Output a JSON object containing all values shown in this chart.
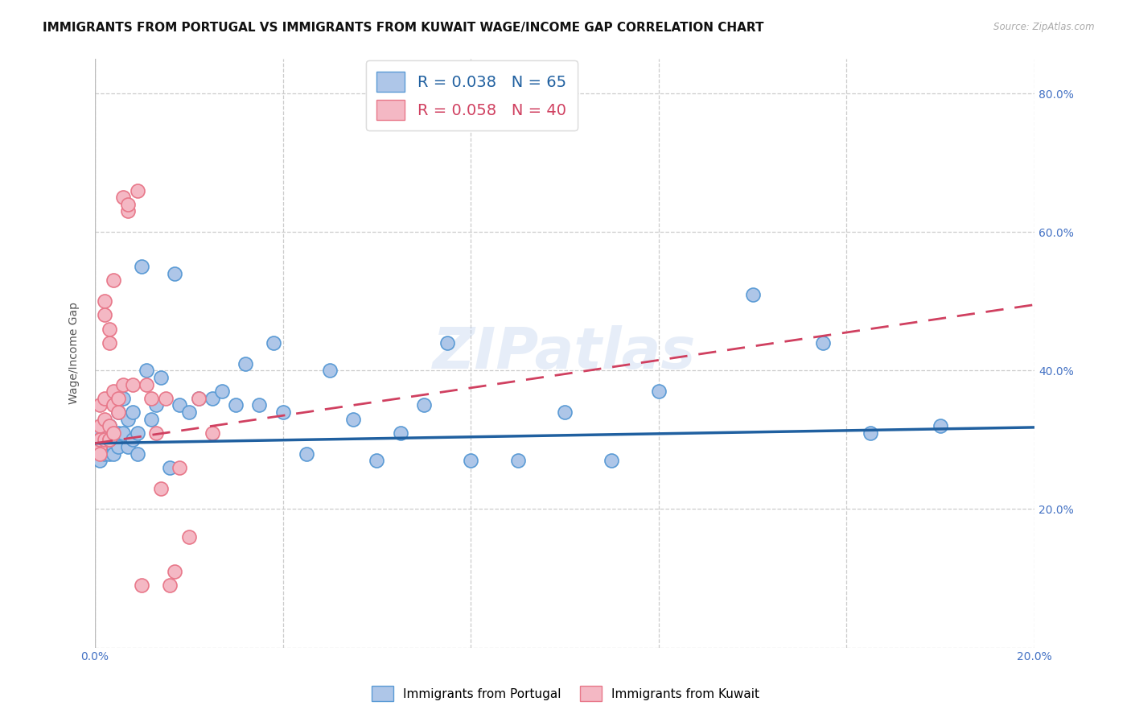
{
  "title": "IMMIGRANTS FROM PORTUGAL VS IMMIGRANTS FROM KUWAIT WAGE/INCOME GAP CORRELATION CHART",
  "source": "Source: ZipAtlas.com",
  "ylabel": "Wage/Income Gap",
  "xlim": [
    0.0,
    0.2
  ],
  "ylim": [
    0.0,
    0.85
  ],
  "xticks": [
    0.0,
    0.04,
    0.08,
    0.12,
    0.16,
    0.2
  ],
  "xticklabels": [
    "0.0%",
    "",
    "",
    "",
    "",
    "20.0%"
  ],
  "yticks": [
    0.0,
    0.2,
    0.4,
    0.6,
    0.8
  ],
  "yticklabels": [
    "",
    "20.0%",
    "40.0%",
    "60.0%",
    "80.0%"
  ],
  "portugal_color": "#aec6e8",
  "portugal_edge": "#5b9bd5",
  "kuwait_color": "#f4b8c4",
  "kuwait_edge": "#e8788a",
  "portugal_line_color": "#2060a0",
  "kuwait_line_color": "#d04060",
  "legend_portugal_label": "R = 0.038   N = 65",
  "legend_kuwait_label": "R = 0.058   N = 40",
  "watermark": "ZIPatlas",
  "background_color": "#ffffff",
  "grid_color": "#cccccc",
  "title_fontsize": 11,
  "axis_fontsize": 10,
  "tick_fontsize": 10,
  "tick_color": "#4472c4",
  "portugal_line_y0": 0.295,
  "portugal_line_y1": 0.318,
  "kuwait_line_y0": 0.295,
  "kuwait_line_y1": 0.495,
  "portugal_x": [
    0.001,
    0.001,
    0.001,
    0.001,
    0.001,
    0.002,
    0.002,
    0.002,
    0.002,
    0.002,
    0.002,
    0.003,
    0.003,
    0.003,
    0.003,
    0.003,
    0.003,
    0.004,
    0.004,
    0.004,
    0.004,
    0.005,
    0.005,
    0.005,
    0.006,
    0.006,
    0.007,
    0.007,
    0.008,
    0.008,
    0.009,
    0.009,
    0.01,
    0.011,
    0.012,
    0.013,
    0.014,
    0.016,
    0.017,
    0.018,
    0.02,
    0.022,
    0.025,
    0.027,
    0.03,
    0.032,
    0.035,
    0.038,
    0.04,
    0.045,
    0.05,
    0.055,
    0.06,
    0.065,
    0.07,
    0.075,
    0.08,
    0.09,
    0.1,
    0.11,
    0.12,
    0.14,
    0.155,
    0.165,
    0.18
  ],
  "portugal_y": [
    0.29,
    0.31,
    0.3,
    0.28,
    0.27,
    0.3,
    0.29,
    0.31,
    0.28,
    0.32,
    0.3,
    0.3,
    0.31,
    0.29,
    0.32,
    0.28,
    0.31,
    0.3,
    0.31,
    0.29,
    0.28,
    0.34,
    0.31,
    0.29,
    0.36,
    0.31,
    0.33,
    0.29,
    0.34,
    0.3,
    0.31,
    0.28,
    0.55,
    0.4,
    0.33,
    0.35,
    0.39,
    0.26,
    0.54,
    0.35,
    0.34,
    0.36,
    0.36,
    0.37,
    0.35,
    0.41,
    0.35,
    0.44,
    0.34,
    0.28,
    0.4,
    0.33,
    0.27,
    0.31,
    0.35,
    0.44,
    0.27,
    0.27,
    0.34,
    0.27,
    0.37,
    0.51,
    0.44,
    0.31,
    0.32
  ],
  "kuwait_x": [
    0.001,
    0.001,
    0.001,
    0.001,
    0.001,
    0.001,
    0.002,
    0.002,
    0.002,
    0.002,
    0.002,
    0.003,
    0.003,
    0.003,
    0.003,
    0.003,
    0.004,
    0.004,
    0.004,
    0.004,
    0.005,
    0.005,
    0.006,
    0.006,
    0.007,
    0.007,
    0.008,
    0.009,
    0.01,
    0.011,
    0.012,
    0.013,
    0.014,
    0.015,
    0.016,
    0.017,
    0.018,
    0.02,
    0.022,
    0.025
  ],
  "kuwait_y": [
    0.3,
    0.29,
    0.28,
    0.32,
    0.35,
    0.3,
    0.33,
    0.5,
    0.48,
    0.3,
    0.36,
    0.3,
    0.32,
    0.46,
    0.44,
    0.3,
    0.35,
    0.31,
    0.53,
    0.37,
    0.34,
    0.36,
    0.38,
    0.65,
    0.63,
    0.64,
    0.38,
    0.66,
    0.09,
    0.38,
    0.36,
    0.31,
    0.23,
    0.36,
    0.09,
    0.11,
    0.26,
    0.16,
    0.36,
    0.31
  ]
}
